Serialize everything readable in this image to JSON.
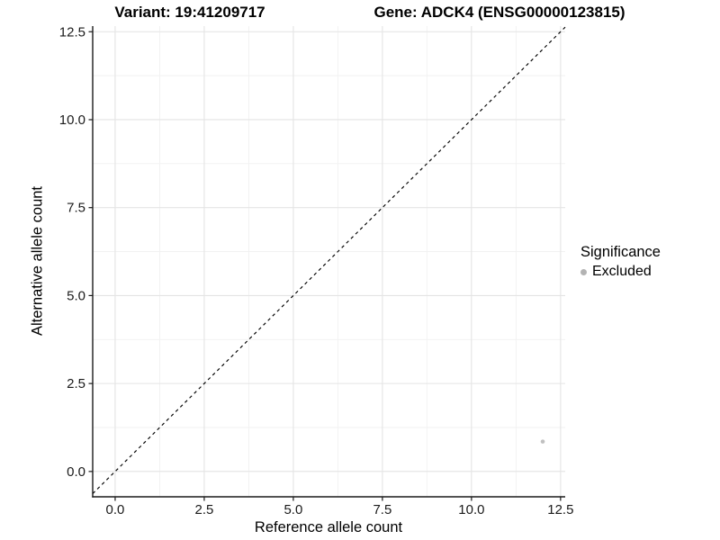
{
  "header": {
    "title_left": "Variant: 19:41209717",
    "title_right": "Gene: ADCK4 (ENSG00000123815)"
  },
  "chart_data": {
    "type": "scatter",
    "xlabel": "Reference allele count",
    "ylabel": "Alternative allele count",
    "xlim": [
      -0.63,
      12.63
    ],
    "ylim": [
      -0.72,
      12.66
    ],
    "xticks": {
      "values": [
        0,
        2.5,
        5,
        7.5,
        10,
        12.5
      ],
      "labels": [
        "0.0",
        "2.5",
        "5.0",
        "7.5",
        "10.0",
        "12.5"
      ]
    },
    "yticks": {
      "values": [
        0,
        2.5,
        5,
        7.5,
        10,
        12.5
      ],
      "labels": [
        "0.0",
        "2.5",
        "5.0",
        "7.5",
        "10.0",
        "12.5"
      ]
    },
    "minor_ticks": {
      "x": [
        1.25,
        3.75,
        6.25,
        8.75,
        11.25
      ],
      "y": [
        1.25,
        3.75,
        6.25,
        8.75,
        11.25
      ]
    },
    "grid": "major+minor",
    "reference_line": {
      "slope": 1,
      "intercept": 0,
      "linetype": "dashed",
      "color": "#000000"
    },
    "points": [
      {
        "x": 12,
        "y": 0.85,
        "series": "Excluded",
        "color": "#c0c0c0",
        "radius": 2.3
      }
    ],
    "legend": {
      "title": "Significance",
      "position": "right",
      "entries": [
        {
          "label": "Excluded",
          "color": "#b3b3b3"
        }
      ]
    }
  },
  "colors": {
    "background": "#ffffff",
    "grid_major": "#e4e4e4",
    "grid_minor": "#f1f1f1",
    "axis_line": "#1a1a1a",
    "tick_mark": "#1a1a1a",
    "tick_label": "#1a1a1a",
    "title": "#000000"
  }
}
